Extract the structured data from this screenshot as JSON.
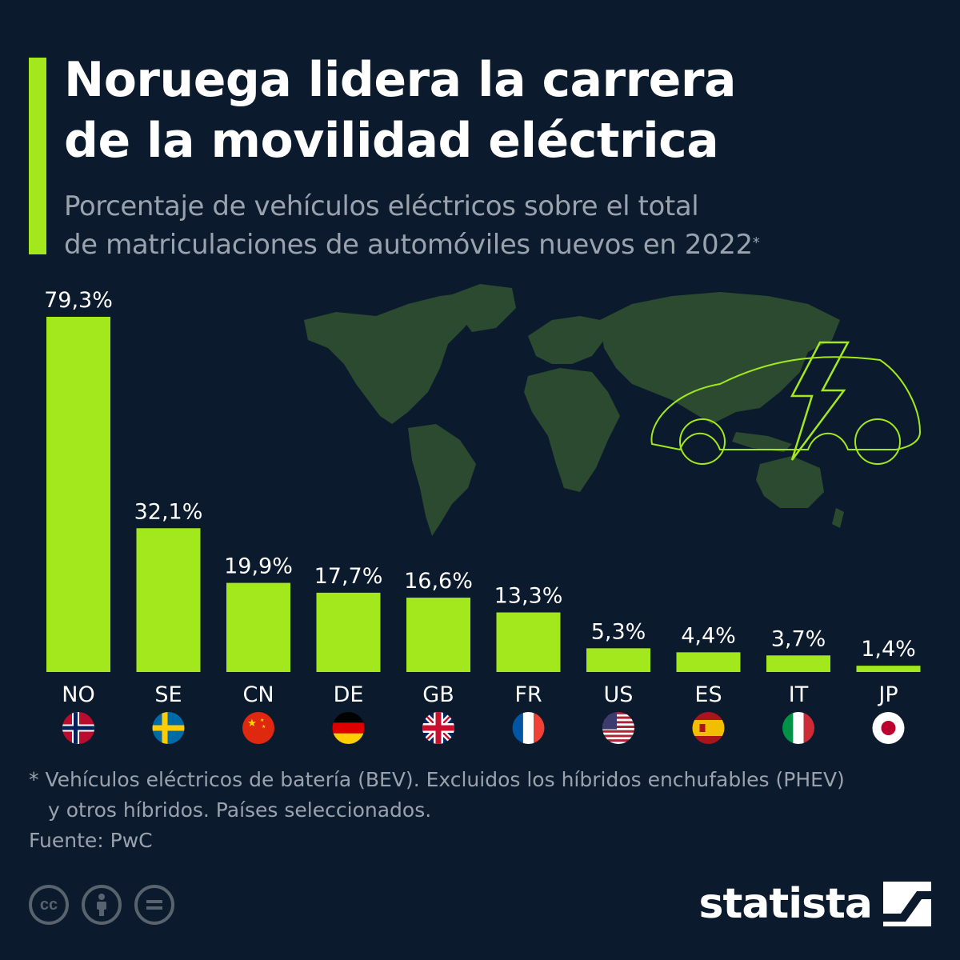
{
  "header": {
    "title_line1": "Noruega lidera la carrera",
    "title_line2": "de la movilidad eléctrica",
    "subtitle_line1": "Porcentaje de vehículos eléctricos sobre el total",
    "subtitle_line2": "de matriculaciones de automóviles nuevos en 2022",
    "subtitle_marker": "*"
  },
  "colors": {
    "background": "#0b1a2c",
    "bar": "#a3e81c",
    "map": "#2c4a30",
    "muted_text": "#9aa3ad"
  },
  "chart_data": {
    "type": "bar",
    "title": "Noruega lidera la carrera de la movilidad eléctrica",
    "subtitle": "Porcentaje de vehículos eléctricos sobre el total de matriculaciones de automóviles nuevos en 2022*",
    "categories": [
      "NO",
      "SE",
      "CN",
      "DE",
      "GB",
      "FR",
      "US",
      "ES",
      "IT",
      "JP"
    ],
    "values": [
      79.3,
      32.1,
      19.9,
      17.7,
      16.6,
      13.3,
      5.3,
      4.4,
      3.7,
      1.4
    ],
    "value_labels": [
      "79,3%",
      "32,1%",
      "19,9%",
      "17,7%",
      "16,6%",
      "13,3%",
      "5,3%",
      "4,4%",
      "3,7%",
      "1,4%"
    ],
    "flags": [
      "norway-flag",
      "sweden-flag",
      "china-flag",
      "germany-flag",
      "uk-flag",
      "france-flag",
      "usa-flag",
      "spain-flag",
      "italy-flag",
      "japan-flag"
    ],
    "ylim": [
      0,
      79.3
    ],
    "grid": false,
    "legend": "none",
    "xlabel": "",
    "ylabel": ""
  },
  "footer": {
    "footnote_line1": "* Vehículos eléctricos de batería (BEV). Excluidos los híbridos enchufables (PHEV)",
    "footnote_line2": "y otros híbridos. Países seleccionados.",
    "source": "Fuente: PwC",
    "brand": "statista",
    "license_icons": [
      "cc-icon",
      "attribution-icon",
      "no-derivatives-icon"
    ]
  }
}
